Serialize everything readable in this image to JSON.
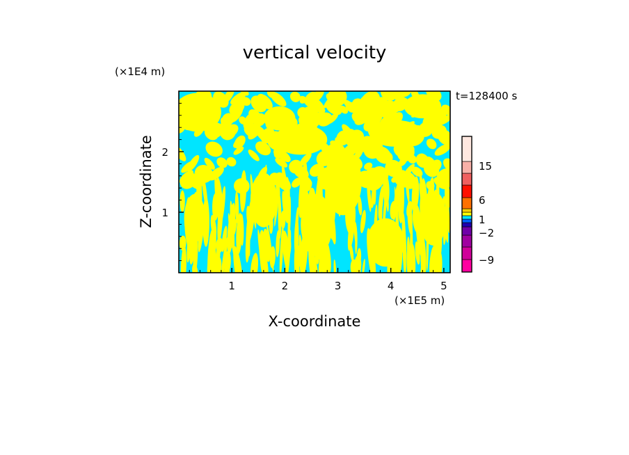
{
  "chart_data": {
    "type": "heatmap",
    "title": "vertical velocity",
    "xlabel": "X-coordinate",
    "ylabel": "Z-coordinate",
    "x_unit": "(×1E5 m)",
    "y_unit": "(×1E4 m)",
    "time_label": "t=128400 s",
    "xlim": [
      0,
      5.12
    ],
    "ylim": [
      0,
      3.0
    ],
    "x_ticks": [
      1,
      2,
      3,
      4,
      5
    ],
    "y_ticks": [
      1,
      2
    ],
    "field_colors": {
      "positive": "#ffff00",
      "negative": "#00e5ff"
    },
    "colorbar": {
      "levels": [
        {
          "color": "#ff00a0"
        },
        {
          "color": "#d0009a"
        },
        {
          "color": "#a000a0"
        },
        {
          "color": "#7000a8"
        },
        {
          "color": "#2000b0"
        },
        {
          "color": "#0060ff"
        },
        {
          "color": "#00e5ff"
        },
        {
          "color": "#ffff00"
        },
        {
          "color": "#ffd000"
        },
        {
          "color": "#ff7000"
        },
        {
          "color": "#ff1000"
        },
        {
          "color": "#f06060"
        },
        {
          "color": "#f8b0a8"
        },
        {
          "color": "#ffe8e0"
        }
      ],
      "labels": [
        "15",
        "6",
        "1",
        "−2",
        "−9"
      ]
    }
  }
}
